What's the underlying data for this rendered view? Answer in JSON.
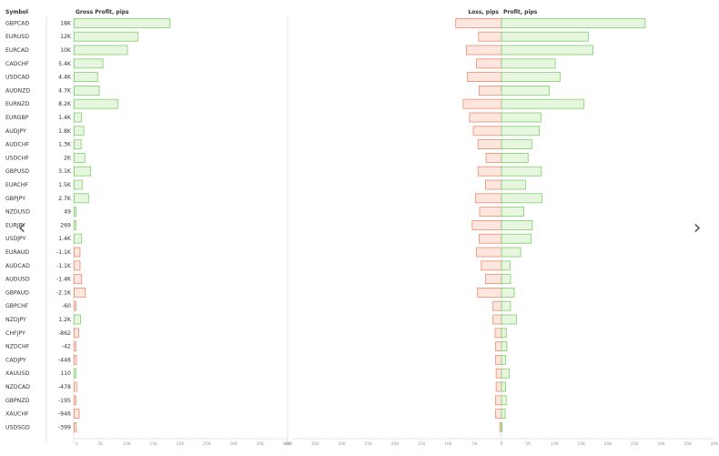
{
  "header": {
    "symbol_col": "Symbol",
    "gross_title": "Gross Profit, pips",
    "loss_title": "Loss, pips",
    "profit_title": "Profit, pips"
  },
  "nav": {
    "prev_icon": "‹",
    "next_icon": "›"
  },
  "colors": {
    "positive_fill": "#e6f6df",
    "positive_stroke": "#7fcf6a",
    "negative_fill": "#fde6de",
    "negative_stroke": "#f08a6e",
    "grid": "#e6e6e6"
  },
  "chart_data": [
    {
      "type": "bar",
      "title": "Gross Profit, pips",
      "orientation": "horizontal",
      "categories": [
        "GBPCAD",
        "EURUSD",
        "EURCAD",
        "CADCHF",
        "USDCAD",
        "AUDNZD",
        "EURNZD",
        "EURGBP",
        "AUDJPY",
        "AUDCHF",
        "USDCHF",
        "GBPUSD",
        "EURCHF",
        "GBPJPY",
        "NZDUSD",
        "EURJPY",
        "USDJPY",
        "EURAUD",
        "AUDCAD",
        "AUDUSD",
        "GBPAUD",
        "GBPCHF",
        "NZDJPY",
        "CHFJPY",
        "NZDCHF",
        "CADJPY",
        "XAUUSD",
        "NZDCAD",
        "GBPNZD",
        "XAUCHF",
        "USDSGD"
      ],
      "value_labels": [
        "18K",
        "12K",
        "10K",
        "5.4K",
        "4.4K",
        "4.7K",
        "8.2K",
        "1.4K",
        "1.8K",
        "1.3K",
        "2K",
        "3.1K",
        "1.5K",
        "2.7K",
        "49",
        "269",
        "1.4K",
        "-1.1K",
        "-1.1K",
        "-1.4K",
        "-2.1K",
        "-60",
        "1.2K",
        "-862",
        "-42",
        "-446",
        "110",
        "-478",
        "-195",
        "-946",
        "-399"
      ],
      "values": [
        18000,
        12000,
        10000,
        5400,
        4400,
        4700,
        8200,
        1400,
        1800,
        1300,
        2000,
        3100,
        1500,
        2700,
        49,
        269,
        1400,
        -1100,
        -1100,
        -1400,
        -2100,
        -60,
        1200,
        -862,
        -42,
        -446,
        110,
        -478,
        -195,
        -946,
        -399
      ],
      "xlim": [
        0,
        40000
      ],
      "ticks": [
        "0",
        "5K",
        "10K",
        "15K",
        "20K",
        "25K",
        "30K",
        "35K",
        "40K"
      ]
    },
    {
      "type": "bar",
      "orientation": "horizontal",
      "series": [
        {
          "name": "Loss, pips",
          "values": [
            8600,
            4300,
            6600,
            4700,
            6400,
            4200,
            7200,
            6000,
            5300,
            4400,
            2900,
            4400,
            3000,
            4900,
            4100,
            5500,
            4200,
            4700,
            3800,
            3000,
            4500,
            1600,
            1600,
            1200,
            1100,
            1100,
            1000,
            1000,
            1100,
            1100,
            300
          ]
        },
        {
          "name": "Profit, pips",
          "values": [
            27000,
            16300,
            17200,
            10100,
            11000,
            9000,
            15500,
            7400,
            7100,
            5700,
            5000,
            7500,
            4500,
            7600,
            4200,
            5800,
            5600,
            3600,
            1600,
            1700,
            2400,
            1700,
            2800,
            900,
            1000,
            800,
            1500,
            800,
            900,
            700,
            100
          ]
        }
      ],
      "xlim": [
        -40000,
        40000
      ],
      "ticks": [
        "40K",
        "35K",
        "30K",
        "25K",
        "20K",
        "15K",
        "10K",
        "5K",
        "0",
        "5K",
        "10K",
        "15K",
        "20K",
        "25K",
        "30K",
        "35K",
        "40K"
      ]
    }
  ]
}
